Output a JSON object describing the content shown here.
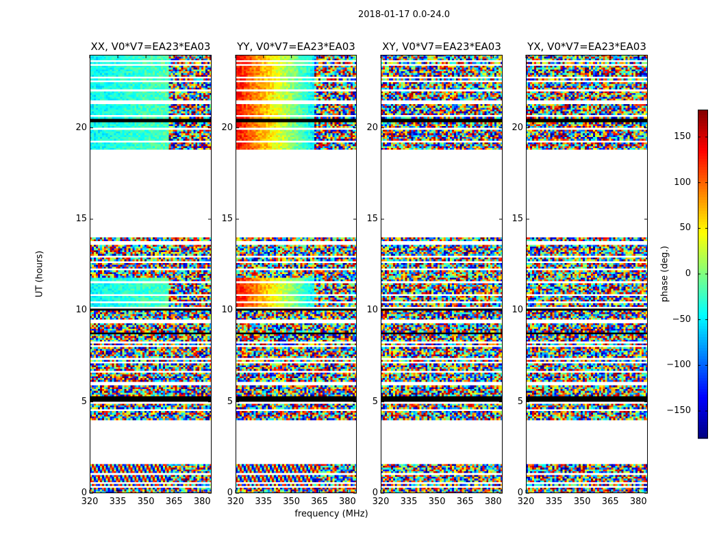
{
  "figure_title": "2018-01-17 0.0-24.0",
  "chart_data": {
    "type": "heatmap",
    "title": "2018-01-17 0.0-24.0",
    "xlabel": "frequency (MHz)",
    "ylabel": "UT (hours)",
    "xlim": [
      320,
      385
    ],
    "ylim": [
      0,
      24
    ],
    "x_ticks": [
      "320",
      "335",
      "350",
      "365",
      "380"
    ],
    "x_tick_values": [
      320,
      335,
      350,
      365,
      380
    ],
    "y_ticks": [
      "0",
      "5",
      "10",
      "15",
      "20"
    ],
    "y_tick_values": [
      0,
      5,
      10,
      15,
      20
    ],
    "panels": [
      {
        "title": "XX, V0*V7=EA23*EA03",
        "polarization": "XX"
      },
      {
        "title": "YY, V0*V7=EA23*EA03",
        "polarization": "YY"
      },
      {
        "title": "XY, V0*V7=EA23*EA03",
        "polarization": "XY"
      },
      {
        "title": "YX, V0*V7=EA23*EA03",
        "polarization": "YX"
      }
    ],
    "colorbar": {
      "label": "phase (deg.)",
      "range": [
        -180,
        180
      ],
      "ticks": [
        "150",
        "100",
        "50",
        "0",
        "−50",
        "−100",
        "−150"
      ],
      "tick_values": [
        150,
        100,
        50,
        0,
        -50,
        -100,
        -150
      ],
      "colormap": "jet"
    },
    "blank_intervals_hours": [
      [
        1.8,
        4.0
      ],
      [
        14.0,
        18.8
      ]
    ],
    "flagged_black_intervals_hours": [
      [
        5.0,
        5.35
      ],
      [
        8.7,
        8.8
      ],
      [
        9.0,
        9.05
      ],
      [
        10.0,
        10.05
      ],
      [
        20.3,
        20.5
      ],
      [
        22.2,
        22.25
      ],
      [
        18.7,
        18.8
      ]
    ]
  }
}
